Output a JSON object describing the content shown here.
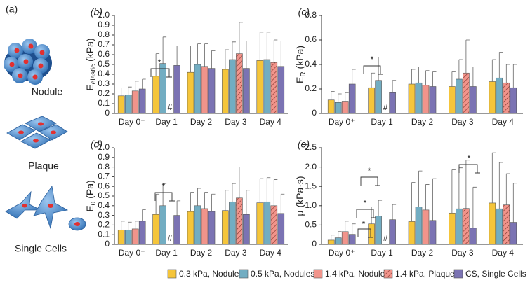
{
  "cell_types": {
    "label": "(a)",
    "items": [
      "Nodule",
      "Plaque",
      "Single Cells"
    ]
  },
  "chart_data": [
    {
      "type": "bar",
      "panel_label": "(b)",
      "ylabel": {
        "main": "E",
        "sub": "elastic",
        "unit": "(kPa)"
      },
      "categories": [
        "Day 0⁺",
        "Day 1",
        "Day 2",
        "Day 3",
        "Day 4"
      ],
      "ylim": [
        0,
        1
      ],
      "yticks": [
        0,
        0.1,
        0.2,
        0.3,
        0.4,
        0.5,
        0.6,
        0.7,
        0.8,
        0.9,
        {
          "value": 1,
          "label": "1.0"
        }
      ],
      "annotations": [
        "*",
        "#"
      ],
      "series": [
        {
          "name": "0.3 kPa, Nodules",
          "color": "#f5c53a",
          "values": [
            0.18,
            0.38,
            0.42,
            0.45,
            0.54
          ],
          "errors": [
            0.08,
            0.23,
            0.27,
            0.2,
            0.29
          ]
        },
        {
          "name": "0.5 kPa, Nodules",
          "color": "#72adc2",
          "values": [
            0.19,
            0.51,
            0.5,
            0.55,
            0.55
          ],
          "errors": [
            0.08,
            0.27,
            0.21,
            0.18,
            0.28
          ]
        },
        {
          "name": "1.4 kPa, Nodules",
          "color": "#f1948b",
          "values": [
            0.23,
            null,
            0.48,
            null,
            null
          ],
          "errors": [
            0.1,
            null,
            0.23,
            null,
            null
          ]
        },
        {
          "name": "1.4 kPa, Plaques",
          "color": "#f1948b",
          "hatch": true,
          "values": [
            null,
            null,
            null,
            0.61,
            0.52
          ],
          "errors": [
            null,
            null,
            null,
            0.32,
            0.23
          ]
        },
        {
          "name": "CS, Single Cells",
          "color": "#7b73b3",
          "values": [
            0.25,
            0.49,
            0.46,
            0.46,
            0.48
          ],
          "errors": [
            0.1,
            0.2,
            0.18,
            0.28,
            0.26
          ]
        }
      ]
    },
    {
      "type": "bar",
      "panel_label": "(c)",
      "ylabel": {
        "main": "E",
        "sub": "R",
        "unit": "(kPa)"
      },
      "categories": [
        "Day 0⁺",
        "Day 1",
        "Day 2",
        "Day 3",
        "Day 4"
      ],
      "ylim": [
        0,
        0.8
      ],
      "yticks": [
        0,
        0.2,
        0.4,
        0.6,
        0.8
      ],
      "annotations": [
        "*",
        "#"
      ],
      "series": [
        {
          "color": "#f5c53a",
          "values": [
            0.11,
            0.21,
            0.24,
            0.22,
            0.26
          ],
          "errors": [
            0.07,
            0.12,
            0.12,
            0.12,
            0.18
          ]
        },
        {
          "color": "#72adc2",
          "values": [
            0.09,
            0.27,
            0.25,
            0.28,
            0.29
          ],
          "errors": [
            0.07,
            0.19,
            0.13,
            0.16,
            0.21
          ]
        },
        {
          "color": "#f1948b",
          "values": [
            0.1,
            null,
            0.23,
            null,
            null
          ],
          "errors": [
            0.07,
            null,
            0.12,
            null,
            null
          ]
        },
        {
          "color": "#f1948b",
          "hatch": true,
          "values": [
            null,
            null,
            null,
            0.33,
            0.25
          ],
          "errors": [
            null,
            null,
            null,
            0.27,
            0.15
          ]
        },
        {
          "color": "#7b73b3",
          "values": [
            0.24,
            0.17,
            0.22,
            0.22,
            0.21
          ],
          "errors": [
            0.12,
            0.1,
            0.12,
            0.16,
            0.19
          ]
        }
      ]
    },
    {
      "type": "bar",
      "panel_label": "(d)",
      "ylabel": {
        "main": "E",
        "sub": "0",
        "unit": "(Pa)"
      },
      "categories": [
        "Day 0⁺",
        "Day 1",
        "Day 2",
        "Day 3",
        "Day 4"
      ],
      "ylim": [
        0,
        1
      ],
      "yticks": [
        0,
        0.1,
        0.2,
        0.3,
        0.4,
        0.5,
        0.6,
        0.7,
        0.8,
        0.9,
        {
          "value": 1,
          "label": "1.0"
        }
      ],
      "annotations": [
        "*",
        "#"
      ],
      "series": [
        {
          "color": "#f5c53a",
          "values": [
            0.15,
            0.31,
            0.34,
            0.35,
            0.43
          ],
          "errors": [
            0.09,
            0.21,
            0.2,
            0.21,
            0.25
          ]
        },
        {
          "color": "#72adc2",
          "values": [
            0.15,
            0.4,
            0.4,
            0.44,
            0.44
          ],
          "errors": [
            0.08,
            0.23,
            0.18,
            0.19,
            0.25
          ]
        },
        {
          "color": "#f1948b",
          "values": [
            0.16,
            null,
            0.37,
            null,
            null
          ],
          "errors": [
            0.08,
            null,
            0.17,
            null,
            null
          ]
        },
        {
          "color": "#f1948b",
          "hatch": true,
          "values": [
            null,
            null,
            null,
            0.48,
            0.4
          ],
          "errors": [
            null,
            null,
            null,
            0.32,
            0.27
          ]
        },
        {
          "color": "#7b73b3",
          "values": [
            0.24,
            0.3,
            0.34,
            0.31,
            0.32
          ],
          "errors": [
            0.12,
            0.15,
            0.18,
            0.25,
            0.2
          ]
        }
      ]
    },
    {
      "type": "bar",
      "panel_label": "(e)",
      "ylabel": {
        "main": "μ",
        "unit": "(kPa·s)"
      },
      "categories": [
        "Day 0⁺",
        "Day 1",
        "Day 2",
        "Day 3",
        "Day 4"
      ],
      "ylim": [
        0,
        2.5
      ],
      "yticks": [
        0,
        0.5,
        {
          "value": 1,
          "label": "1.0"
        },
        1.5,
        {
          "value": 2,
          "label": "2.0"
        },
        2.5
      ],
      "annotations": [
        "*",
        "*",
        "*",
        "*",
        "#"
      ],
      "series": [
        {
          "color": "#f5c53a",
          "values": [
            0.11,
            0.53,
            0.59,
            0.81,
            1.07
          ],
          "errors": [
            0.13,
            0.44,
            1.01,
            1.12,
            1.3
          ]
        },
        {
          "color": "#72adc2",
          "values": [
            0.17,
            0.73,
            0.97,
            0.92,
            0.92
          ],
          "errors": [
            0.16,
            0.41,
            0.93,
            1.06,
            1.2
          ]
        },
        {
          "color": "#f1948b",
          "values": [
            0.33,
            null,
            0.89,
            null,
            null
          ],
          "errors": [
            0.27,
            null,
            0.66,
            null,
            null
          ]
        },
        {
          "color": "#f1948b",
          "hatch": true,
          "values": [
            null,
            null,
            null,
            0.93,
            1.02
          ],
          "errors": [
            null,
            null,
            null,
            1.25,
            0.81
          ]
        },
        {
          "color": "#7b73b3",
          "values": [
            0.26,
            0.64,
            0.62,
            0.42,
            0.57
          ],
          "errors": [
            0.27,
            0.39,
            1.08,
            1.06,
            1.01
          ]
        }
      ]
    }
  ]
}
